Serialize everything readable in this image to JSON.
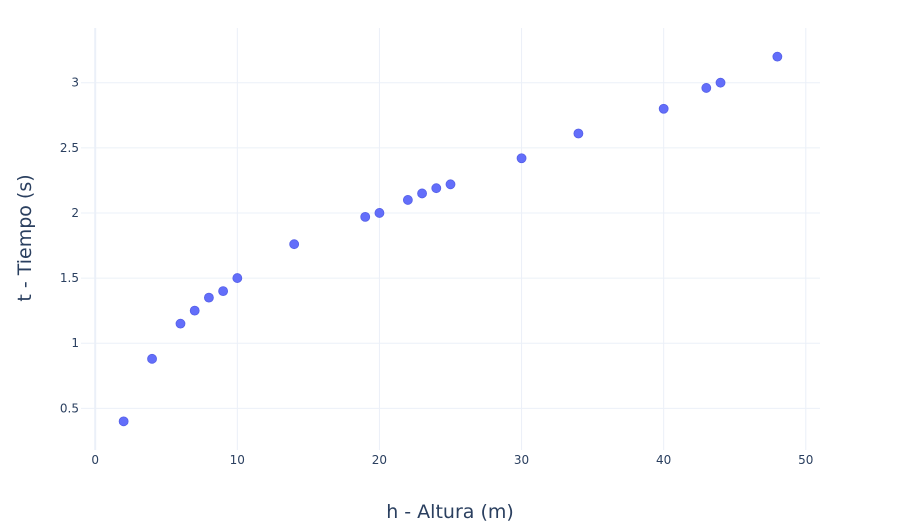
{
  "chart_data": {
    "type": "scatter",
    "xlabel": "h - Altura (m)",
    "ylabel": "t - Tiempo (s)",
    "xlim": [
      -1,
      51
    ],
    "ylim": [
      0.18,
      3.42
    ],
    "x_ticks": [
      0,
      10,
      20,
      30,
      40,
      50
    ],
    "y_ticks": [
      0.5,
      1,
      1.5,
      2,
      2.5,
      3
    ],
    "x_tick_labels": [
      "0",
      "10",
      "20",
      "30",
      "40",
      "50"
    ],
    "y_tick_labels": [
      "0.5",
      "1",
      "1.5",
      "2",
      "2.5",
      "3"
    ],
    "grid": true,
    "marker_color": "#636efa",
    "series": [
      {
        "x": [
          2,
          4,
          6,
          7,
          8,
          9,
          10,
          14,
          19,
          20,
          22,
          23,
          24,
          25,
          30,
          34,
          40,
          43,
          44,
          48
        ],
        "y": [
          0.4,
          0.88,
          1.15,
          1.25,
          1.35,
          1.4,
          1.5,
          1.76,
          1.97,
          2.0,
          2.1,
          2.15,
          2.19,
          2.22,
          2.42,
          2.61,
          2.8,
          2.96,
          3.0,
          3.2
        ]
      }
    ]
  }
}
